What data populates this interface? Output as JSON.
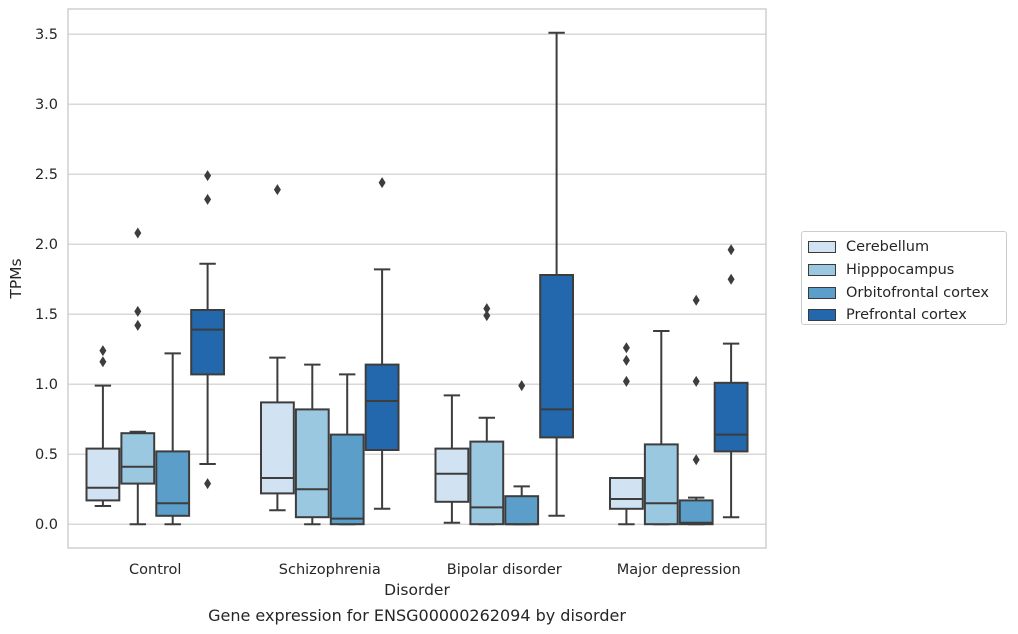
{
  "caption": "Gene expression for ENSG00000262094 by disorder",
  "chart_data": {
    "type": "box",
    "xlabel": "Disorder",
    "ylabel": "TPMs",
    "ylim": [
      -0.17,
      3.68
    ],
    "yticks": [
      "0.0",
      "0.5",
      "1.0",
      "1.5",
      "2.0",
      "2.5",
      "3.0",
      "3.5"
    ],
    "grid": "horizontal",
    "legend_position": "right",
    "categories": [
      "Control",
      "Schizophrenia",
      "Bipolar disorder",
      "Major depression"
    ],
    "series": [
      {
        "name": "Cerebellum",
        "color": "#d1e2f2",
        "boxes": [
          {
            "whisker_low": 0.13,
            "q1": 0.17,
            "median": 0.26,
            "q3": 0.54,
            "whisker_high": 0.99,
            "outliers": [
              1.16,
              1.24
            ]
          },
          {
            "whisker_low": 0.1,
            "q1": 0.22,
            "median": 0.33,
            "q3": 0.87,
            "whisker_high": 1.19,
            "outliers": [
              2.39
            ]
          },
          {
            "whisker_low": 0.01,
            "q1": 0.16,
            "median": 0.36,
            "q3": 0.54,
            "whisker_high": 0.92,
            "outliers": []
          },
          {
            "whisker_low": 0.0,
            "q1": 0.11,
            "median": 0.18,
            "q3": 0.33,
            "whisker_high": 0.33,
            "outliers": [
              1.02,
              1.17,
              1.26
            ]
          }
        ]
      },
      {
        "name": "Hipppocampus",
        "color": "#9ac8e0",
        "boxes": [
          {
            "whisker_low": 0.0,
            "q1": 0.29,
            "median": 0.41,
            "q3": 0.65,
            "whisker_high": 0.66,
            "outliers": [
              1.42,
              1.52,
              2.08
            ]
          },
          {
            "whisker_low": 0.0,
            "q1": 0.05,
            "median": 0.25,
            "q3": 0.82,
            "whisker_high": 1.14,
            "outliers": []
          },
          {
            "whisker_low": 0.0,
            "q1": 0.0,
            "median": 0.12,
            "q3": 0.59,
            "whisker_high": 0.76,
            "outliers": [
              1.49,
              1.54
            ]
          },
          {
            "whisker_low": 0.0,
            "q1": 0.0,
            "median": 0.15,
            "q3": 0.57,
            "whisker_high": 1.38,
            "outliers": []
          }
        ]
      },
      {
        "name": "Orbitofrontal cortex",
        "color": "#5a9ec9",
        "boxes": [
          {
            "whisker_low": 0.0,
            "q1": 0.06,
            "median": 0.15,
            "q3": 0.52,
            "whisker_high": 1.22,
            "outliers": []
          },
          {
            "whisker_low": 0.0,
            "q1": 0.0,
            "median": 0.04,
            "q3": 0.64,
            "whisker_high": 1.07,
            "outliers": []
          },
          {
            "whisker_low": 0.0,
            "q1": 0.0,
            "median": 0.0,
            "q3": 0.2,
            "whisker_high": 0.27,
            "outliers": [
              0.99
            ]
          },
          {
            "whisker_low": 0.0,
            "q1": 0.0,
            "median": 0.01,
            "q3": 0.17,
            "whisker_high": 0.19,
            "outliers": [
              0.46,
              1.02,
              1.6
            ]
          }
        ]
      },
      {
        "name": "Prefrontal cortex",
        "color": "#2367ac",
        "boxes": [
          {
            "whisker_low": 0.43,
            "q1": 1.07,
            "median": 1.39,
            "q3": 1.53,
            "whisker_high": 1.86,
            "outliers": [
              0.29,
              2.32,
              2.49
            ]
          },
          {
            "whisker_low": 0.11,
            "q1": 0.53,
            "median": 0.88,
            "q3": 1.14,
            "whisker_high": 1.82,
            "outliers": [
              2.44
            ]
          },
          {
            "whisker_low": 0.06,
            "q1": 0.62,
            "median": 0.82,
            "q3": 1.78,
            "whisker_high": 3.51,
            "outliers": []
          },
          {
            "whisker_low": 0.05,
            "q1": 0.52,
            "median": 0.64,
            "q3": 1.01,
            "whisker_high": 1.29,
            "outliers": [
              1.75,
              1.96
            ]
          }
        ]
      }
    ]
  }
}
